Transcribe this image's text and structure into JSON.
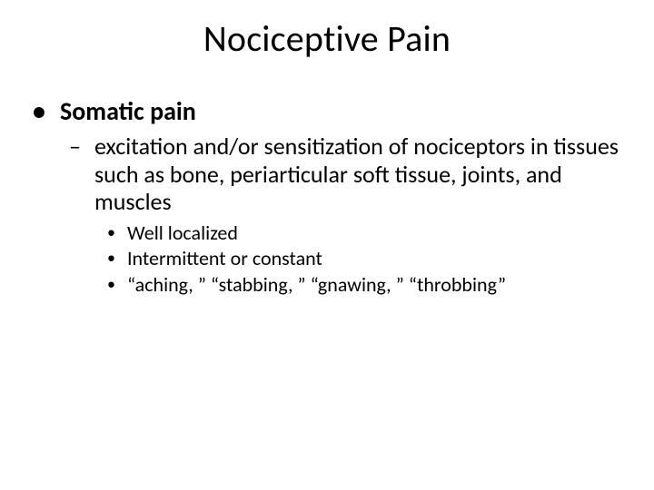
{
  "slide": {
    "title": "Nociceptive Pain",
    "level1": {
      "bullet": "•",
      "text": "Somatic pain"
    },
    "level2": {
      "bullet": "–",
      "text": "excitation and/or sensitization of nociceptors in tissues such as bone, periarticular soft tissue, joints, and muscles"
    },
    "level3": [
      {
        "bullet": "•",
        "text": "Well localized"
      },
      {
        "bullet": "•",
        "text": "Intermittent or constant"
      },
      {
        "bullet": "•",
        "text": "“aching, ” “stabbing, ” “gnawing, ” “throbbing”"
      }
    ]
  },
  "style": {
    "background_color": "#ffffff",
    "text_color": "#000000",
    "font_family": "Calibri",
    "title_fontsize": 40,
    "l1_fontsize": 28,
    "l1_fontweight": "bold",
    "l2_fontsize": 26,
    "l3_fontsize": 22,
    "slide_width": 720,
    "slide_height": 540
  }
}
